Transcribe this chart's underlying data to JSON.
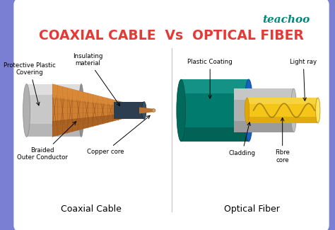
{
  "bg_color": "#7b7fd4",
  "border_color": "#6666cc",
  "inner_bg": "#ffffff",
  "title": "COAXIAL CABLE  Vs  OPTICAL FIBER",
  "title_color": "#e53935",
  "title_fontsize": 13.5,
  "teachoo_color": "#00897b",
  "teachoo_text": "teachoo",
  "left_label": "Coaxial Cable",
  "right_label": "Optical Fiber"
}
